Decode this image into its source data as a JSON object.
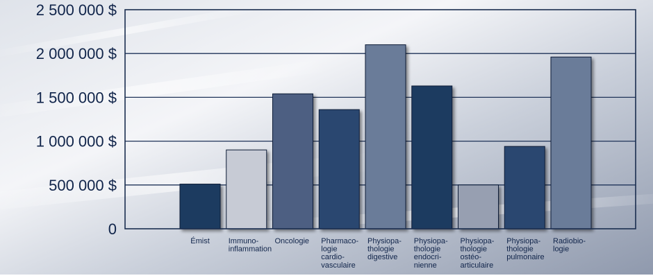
{
  "chart_data": {
    "type": "bar",
    "title": "",
    "xlabel": "",
    "ylabel": "",
    "ylim": [
      0,
      2500000
    ],
    "grid": true,
    "legend": "none",
    "y_ticks": [
      {
        "value": 0,
        "label": "0"
      },
      {
        "value": 500000,
        "label": "500 000 $"
      },
      {
        "value": 1000000,
        "label": "1 000 000 $"
      },
      {
        "value": 1500000,
        "label": "1 500 000 $"
      },
      {
        "value": 2000000,
        "label": "2 000 000 $"
      },
      {
        "value": 2500000,
        "label": "2 500 000 $"
      }
    ],
    "categories": [
      {
        "lines": [
          "Émist"
        ],
        "value": 510000,
        "color": "#1d3a60"
      },
      {
        "lines": [
          "Immuno-",
          "inflammation"
        ],
        "value": 900000,
        "color": "#c7cbd5"
      },
      {
        "lines": [
          "Oncologie"
        ],
        "value": 1540000,
        "color": "#4d5f82"
      },
      {
        "lines": [
          "Pharmaco-",
          "logie",
          "cardio-",
          "vasculaire"
        ],
        "value": 1360000,
        "color": "#2b4670"
      },
      {
        "lines": [
          "Physiopa-",
          "thologie",
          "digestive"
        ],
        "value": 2100000,
        "color": "#6b7b99"
      },
      {
        "lines": [
          "Physiopa-",
          "thologie",
          "endocri-",
          "nienne"
        ],
        "value": 1630000,
        "color": "#1d3a60"
      },
      {
        "lines": [
          "Physiopa-",
          "thologie",
          "ostéo-",
          "articulaire"
        ],
        "value": 500000,
        "color": "#979fb1"
      },
      {
        "lines": [
          "Physiopa-",
          "thologie",
          "pulmonaire"
        ],
        "value": 940000,
        "color": "#2b4670"
      },
      {
        "lines": [
          "Radiobio-",
          "logie"
        ],
        "value": 1960000,
        "color": "#6b7b99"
      }
    ],
    "colors": {
      "axis": "#1a2d4f",
      "grid": "#1f3358",
      "tick_text": "#10244a",
      "background_light": "#f1f3f7",
      "background_dark": "#aab3c3"
    }
  }
}
